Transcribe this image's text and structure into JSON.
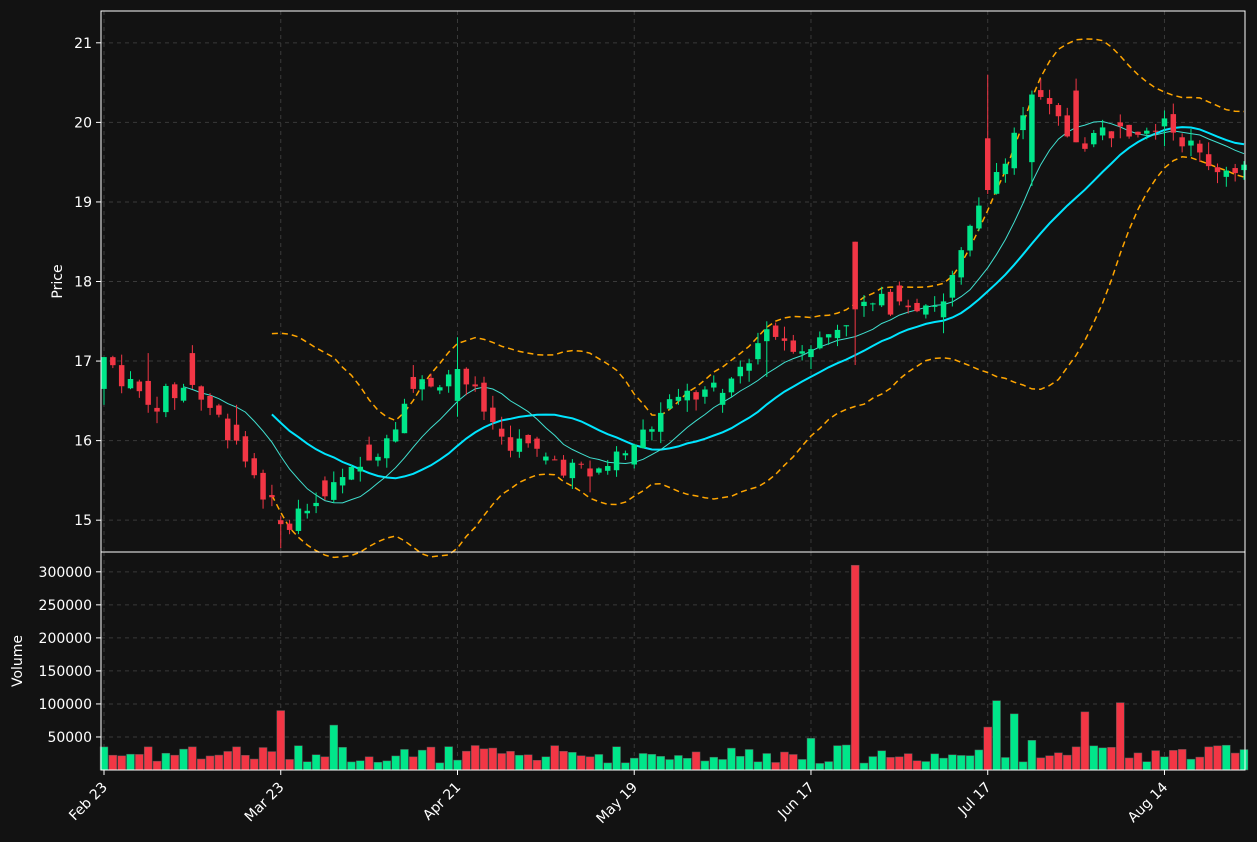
{
  "theme": {
    "background": "#121212",
    "foreground": "#ffffff",
    "grid": "#3a3a3a",
    "up": "#00e68a",
    "down": "#f23645",
    "bb": "#ffa500",
    "sma_slow": "#00e5ff",
    "sma_fast": "#40e0d0"
  },
  "chart_data": {
    "type": "candlestick",
    "title": "",
    "panels": [
      {
        "name": "price",
        "ylabel": "Price",
        "ylim": [
          14.6,
          21.4
        ],
        "yticks": [
          15,
          16,
          17,
          18,
          19,
          20,
          21
        ]
      },
      {
        "name": "volume",
        "ylabel": "Volume",
        "ylim": [
          0,
          330000
        ],
        "yticks": [
          50000,
          100000,
          150000,
          200000,
          250000,
          300000
        ]
      }
    ],
    "x_ticks": [
      {
        "label": "Feb 23",
        "index": 0
      },
      {
        "label": "Mar 23",
        "index": 20
      },
      {
        "label": "Apr 21",
        "index": 40
      },
      {
        "label": "May 19",
        "index": 60
      },
      {
        "label": "Jun 17",
        "index": 80
      },
      {
        "label": "Jul 17",
        "index": 100
      },
      {
        "label": "Aug 14",
        "index": 120
      }
    ],
    "grid": true,
    "ohlc_sampled_every_5_sessions": [
      {
        "index": 0,
        "open": 16.65,
        "high": 17.05,
        "low": 16.45,
        "close": 17.05,
        "volume": 35000
      },
      {
        "index": 5,
        "open": 16.75,
        "high": 17.1,
        "low": 16.35,
        "close": 16.45,
        "volume": 35000
      },
      {
        "index": 10,
        "open": 17.1,
        "high": 17.2,
        "low": 16.65,
        "close": 16.7,
        "volume": 35000
      },
      {
        "index": 15,
        "open": 16.2,
        "high": 16.45,
        "low": 15.95,
        "close": 16.0,
        "volume": 35000
      },
      {
        "index": 20,
        "open": 15.0,
        "high": 15.05,
        "low": 14.65,
        "close": 14.95,
        "volume": 90000
      },
      {
        "index": 25,
        "open": 15.5,
        "high": 15.55,
        "low": 15.25,
        "close": 15.3,
        "volume": 20000
      },
      {
        "index": 30,
        "open": 15.95,
        "high": 16.05,
        "low": 15.75,
        "close": 15.75,
        "volume": 20000
      },
      {
        "index": 35,
        "open": 16.8,
        "high": 16.95,
        "low": 16.6,
        "close": 16.65,
        "volume": 20000
      },
      {
        "index": 40,
        "open": 16.5,
        "high": 17.3,
        "low": 16.3,
        "close": 16.9,
        "volume": 15000
      },
      {
        "index": 45,
        "open": 16.15,
        "high": 16.3,
        "low": 15.95,
        "close": 16.05,
        "volume": 25000
      },
      {
        "index": 50,
        "open": 15.75,
        "high": 15.85,
        "low": 15.7,
        "close": 15.8,
        "volume": 20000
      },
      {
        "index": 55,
        "open": 15.65,
        "high": 15.75,
        "low": 15.35,
        "close": 15.55,
        "volume": 20000
      },
      {
        "index": 60,
        "open": 15.7,
        "high": 15.95,
        "low": 15.65,
        "close": 15.95,
        "volume": 18000
      },
      {
        "index": 65,
        "open": 16.5,
        "high": 16.65,
        "low": 16.45,
        "close": 16.55,
        "volume": 22000
      },
      {
        "index": 70,
        "open": 16.45,
        "high": 16.65,
        "low": 16.35,
        "close": 16.6,
        "volume": 16000
      },
      {
        "index": 75,
        "open": 17.25,
        "high": 17.5,
        "low": 16.8,
        "close": 17.4,
        "volume": 25000
      },
      {
        "index": 80,
        "open": 17.05,
        "high": 17.2,
        "low": 16.9,
        "close": 17.15,
        "volume": 48000
      },
      {
        "index": 85,
        "open": 18.5,
        "high": 18.5,
        "low": 16.95,
        "close": 17.65,
        "volume": 310000
      },
      {
        "index": 90,
        "open": 17.95,
        "high": 18.0,
        "low": 17.7,
        "close": 17.75,
        "volume": 20000
      },
      {
        "index": 95,
        "open": 17.55,
        "high": 17.85,
        "low": 17.35,
        "close": 17.75,
        "volume": 18000
      },
      {
        "index": 100,
        "open": 19.8,
        "high": 20.6,
        "low": 19.1,
        "close": 19.15,
        "volume": 65000
      },
      {
        "index": 105,
        "open": 19.5,
        "high": 20.4,
        "low": 19.2,
        "close": 20.35,
        "volume": 45000
      },
      {
        "index": 110,
        "open": 20.4,
        "high": 20.55,
        "low": 19.75,
        "close": 19.75,
        "volume": 35000
      },
      {
        "index": 115,
        "open": 20.0,
        "high": 20.1,
        "low": 19.8,
        "close": 19.95,
        "volume": 55000
      },
      {
        "index": 120,
        "open": 19.95,
        "high": 20.15,
        "low": 19.7,
        "close": 20.05,
        "volume": 20000
      },
      {
        "index": 125,
        "open": 19.6,
        "high": 19.75,
        "low": 19.4,
        "close": 19.45,
        "volume": 35000
      }
    ],
    "overlays": [
      {
        "kind": "line",
        "style": "solid-thick",
        "color_key": "sma_slow"
      },
      {
        "kind": "line",
        "style": "solid-thin",
        "color_key": "sma_fast"
      },
      {
        "kind": "band-upper",
        "style": "dashed",
        "color_key": "bb"
      },
      {
        "kind": "band-lower",
        "style": "dashed",
        "color_key": "bb"
      }
    ],
    "annotations": []
  }
}
